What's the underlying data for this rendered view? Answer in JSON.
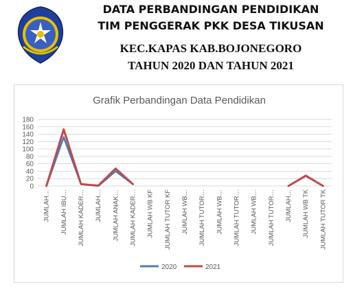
{
  "header": {
    "line1": "DATA PERBANDINGAN PENDIDIKAN",
    "line2": "TIM PENGGERAK PKK DESA TIKUSAN",
    "line3": "KEC.KAPAS KAB.BOJONEGORO",
    "line4": "TAHUN  2020 DAN TAHUN 2021"
  },
  "logo": {
    "icon": "pkk-emblem-icon",
    "outer_color": "#1f3f9a",
    "inner_color": "#3b5fc0",
    "accent_color": "#e3c200"
  },
  "chart_data": {
    "type": "line",
    "title": "Grafik Perbandingan Data Pendidikan",
    "categories": [
      "JUMLAH…",
      "JUMLAH IBU…",
      "JUMLAH KADER…",
      "JUMLAH…",
      "JUMLAH ANAK…",
      "JUMLAH KADER…",
      "JUMLAH WB KF",
      "JUMLAH TUTOR KF",
      "JUMLAH WB…",
      "JUMLAH TUTOR…",
      "JUMLAH WB…",
      "JUMLAH TUTOR…",
      "JUMLAH WB…",
      "JUMLAH TUTOR…",
      "JUMLAH…",
      "JUMLAH WB TK",
      "JUMLAH TUTOR TK"
    ],
    "series": [
      {
        "name": "2020",
        "color": "#4a7ebb",
        "values": [
          0,
          132,
          5,
          0,
          40,
          5,
          null,
          null,
          null,
          null,
          null,
          null,
          null,
          null,
          0,
          27,
          0
        ]
      },
      {
        "name": "2021",
        "color": "#be4b48",
        "values": [
          0,
          153,
          5,
          1,
          47,
          5,
          null,
          null,
          null,
          null,
          null,
          null,
          null,
          null,
          0,
          28,
          0
        ]
      }
    ],
    "ylim": [
      0,
      180
    ],
    "yticks": [
      0,
      20,
      40,
      60,
      80,
      100,
      120,
      140,
      160,
      180
    ],
    "grid": true,
    "legend_position": "bottom"
  }
}
